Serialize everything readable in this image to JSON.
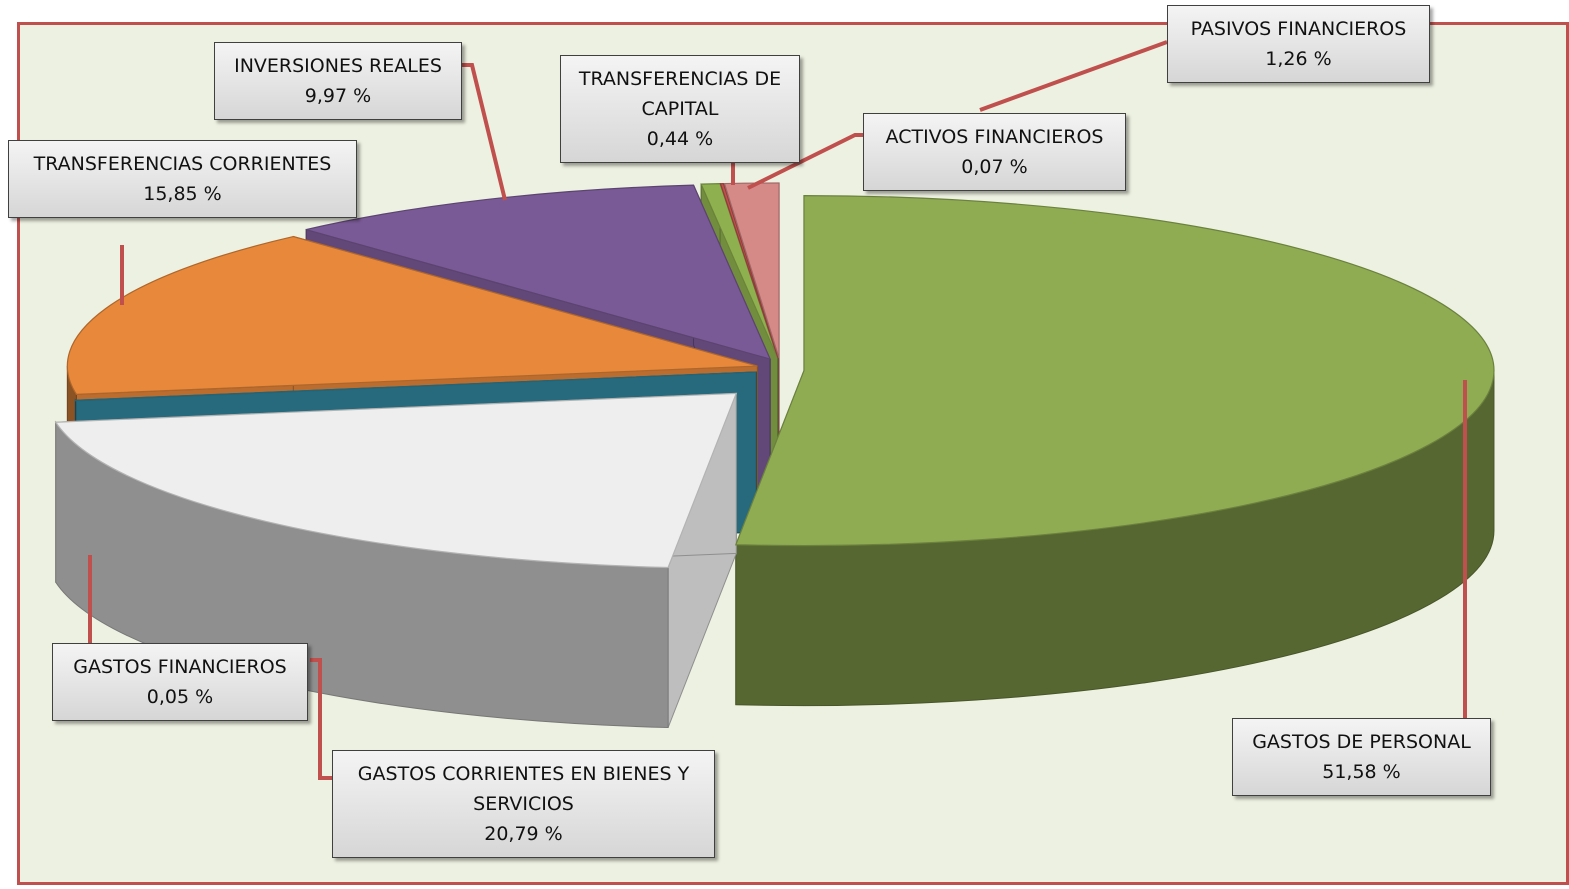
{
  "chart_data": {
    "type": "pie",
    "categories": [
      "GASTOS DE PERSONAL",
      "GASTOS CORRIENTES EN BIENES Y SERVICIOS",
      "GASTOS FINANCIEROS",
      "TRANSFERENCIAS CORRIENTES",
      "INVERSIONES REALES",
      "TRANSFERENCIAS DE CAPITAL",
      "ACTIVOS FINANCIEROS",
      "PASIVOS FINANCIEROS"
    ],
    "values": [
      51.58,
      20.79,
      0.05,
      15.85,
      9.97,
      0.44,
      0.07,
      1.26
    ],
    "value_labels": [
      "51,58 %",
      "20,79 %",
      "0,05 %",
      "15,85 %",
      "9,97 %",
      "0,44 %",
      "0,07 %",
      "1,26 %"
    ],
    "colors": [
      "#8fac52",
      "#eeeeee",
      "#31859c",
      "#e8883a",
      "#7a5a96",
      "#8fb04e",
      "#c0504d",
      "#d58a88"
    ]
  }
}
